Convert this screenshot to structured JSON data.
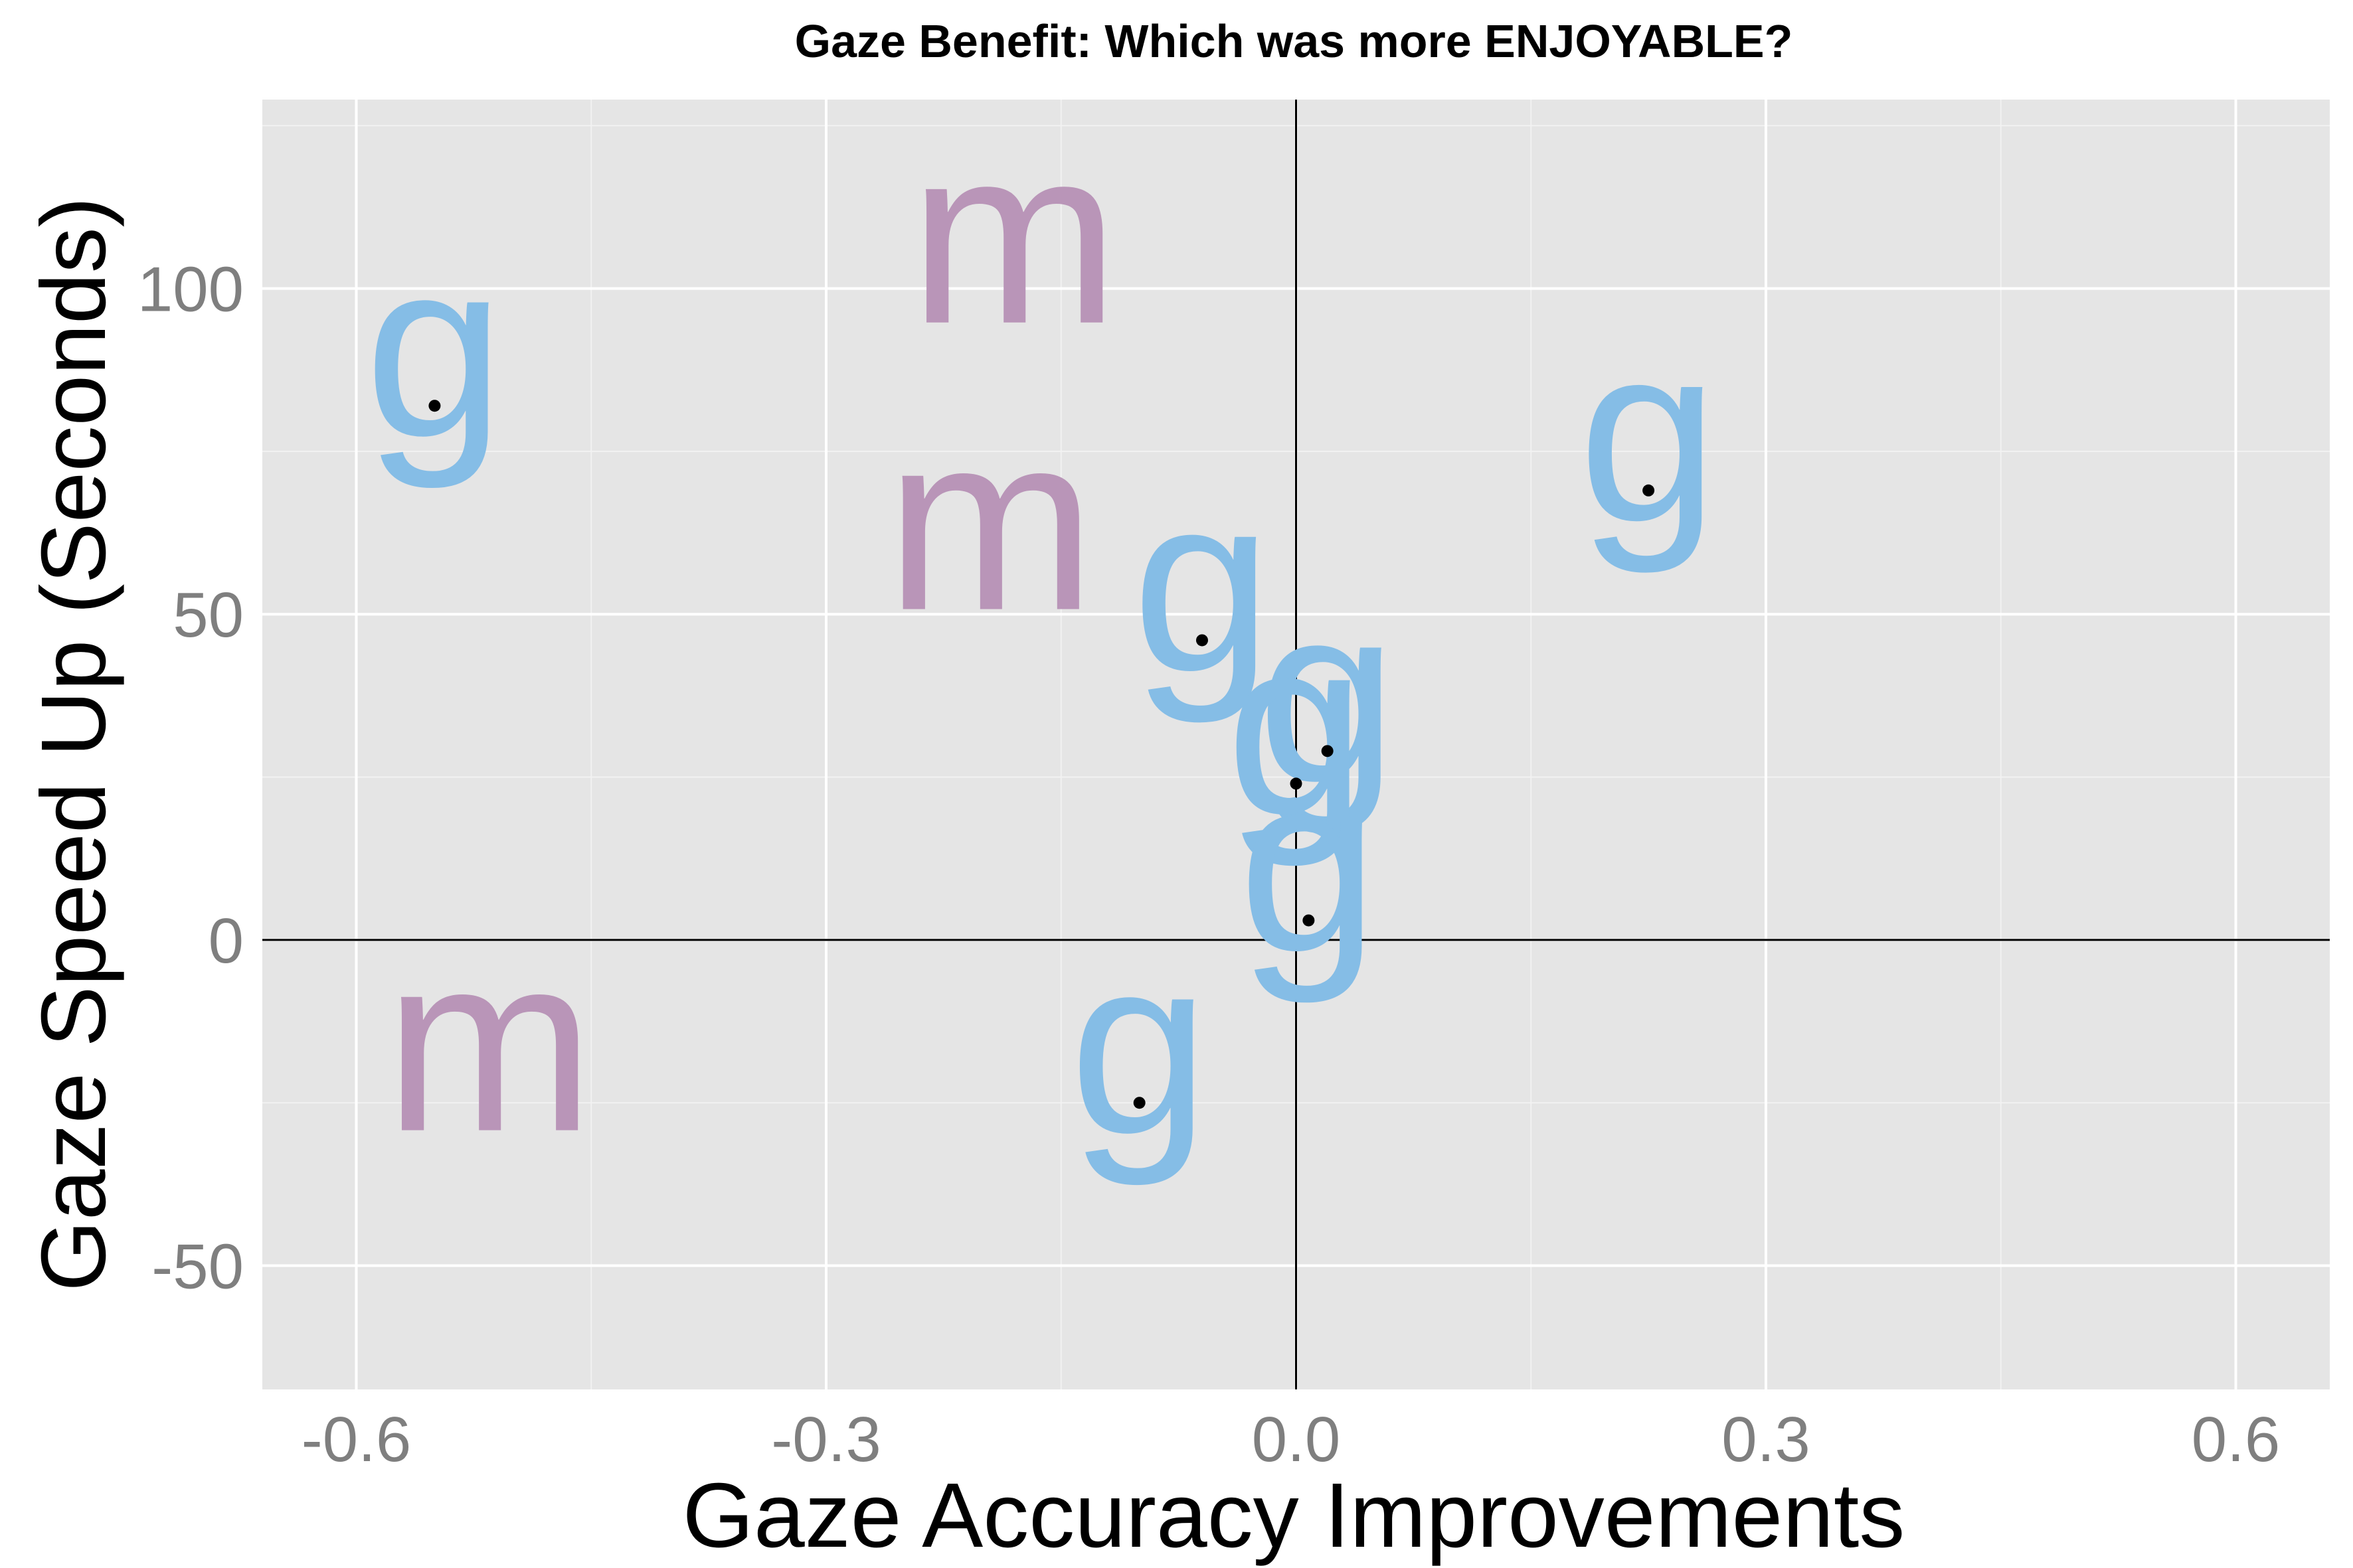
{
  "chart_data": {
    "type": "scatter",
    "title": "Gaze Benefit: Which was more ENJOYABLE?",
    "xlabel": "Gaze Accuracy Improvements",
    "ylabel": "Gaze Speed Up (Seconds)",
    "xlim": [
      -0.66,
      0.66
    ],
    "ylim": [
      -69,
      129
    ],
    "x_ticks": [
      -0.6,
      -0.3,
      0.0,
      0.3,
      0.6
    ],
    "x_tick_labels": [
      "-0.6",
      "-0.3",
      "0.0",
      "0.3",
      "0.6"
    ],
    "y_ticks": [
      -50,
      0,
      50,
      100
    ],
    "y_tick_labels": [
      "-50",
      "0",
      "50",
      "100"
    ],
    "grid": true,
    "reference_lines": {
      "x": 0,
      "y": 0
    },
    "colors": {
      "panel": "#e5e5e5",
      "grid": "#ffffff",
      "g": "#85bde6",
      "m": "#b995b8",
      "point": "#000000"
    },
    "points": [
      {
        "x": -0.55,
        "y": 82,
        "label": "g"
      },
      {
        "x": -0.18,
        "y": 106,
        "label": "m"
      },
      {
        "x": -0.195,
        "y": 62,
        "label": "m"
      },
      {
        "x": -0.06,
        "y": 46,
        "label": "g"
      },
      {
        "x": 0.225,
        "y": 69,
        "label": "g"
      },
      {
        "x": 0.02,
        "y": 29,
        "label": "g"
      },
      {
        "x": 0.0,
        "y": 24,
        "label": "g"
      },
      {
        "x": 0.008,
        "y": 3,
        "label": "g"
      },
      {
        "x": -0.515,
        "y": -18,
        "label": "m"
      },
      {
        "x": -0.1,
        "y": -25,
        "label": "g"
      }
    ]
  }
}
